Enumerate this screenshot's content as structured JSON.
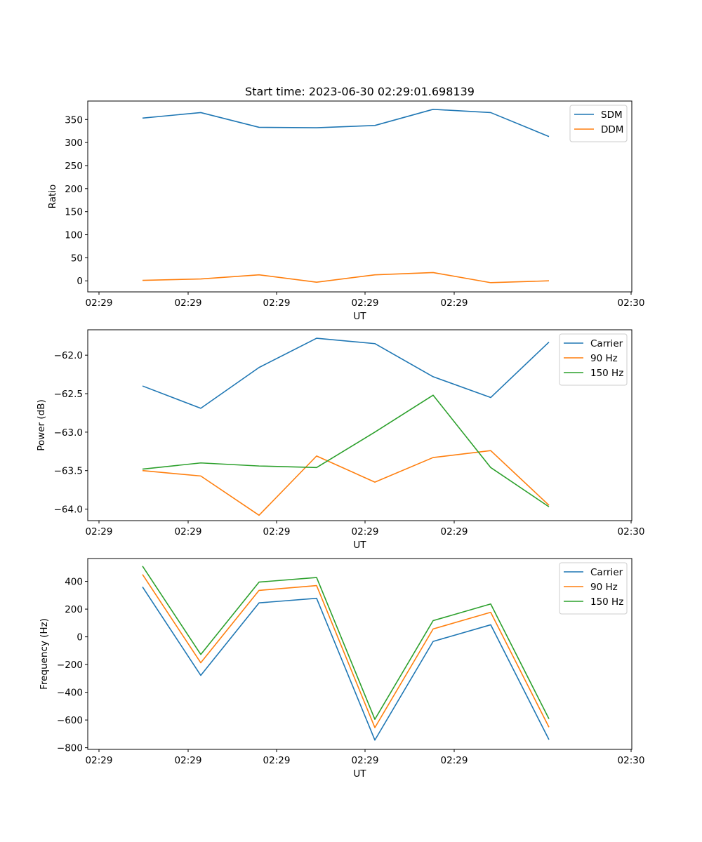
{
  "figure": {
    "title": "Start time: 2023-06-30 02:29:01.698139",
    "x_tick_labels": [
      "02:29",
      "02:29",
      "02:29",
      "02:29",
      "02:29",
      "02:30"
    ],
    "series_colors": {
      "blue": "#1f77b4",
      "orange": "#ff7f0e",
      "green": "#2ca02c"
    }
  },
  "chart_data": [
    {
      "type": "line",
      "xlabel": "UT",
      "ylabel": "Ratio",
      "ylim": [
        -24,
        390
      ],
      "y_ticks": [
        0,
        50,
        100,
        150,
        200,
        250,
        300,
        350
      ],
      "y_tick_labels": [
        "0",
        "50",
        "100",
        "150",
        "200",
        "250",
        "300",
        "350"
      ],
      "legend": "top-right",
      "series": [
        {
          "name": "SDM",
          "color": "#1f77b4",
          "values": [
            353,
            365,
            333,
            332,
            337,
            372,
            365,
            313
          ]
        },
        {
          "name": "DDM",
          "color": "#ff7f0e",
          "values": [
            1,
            4,
            13,
            -3,
            13,
            18,
            -4,
            0
          ]
        }
      ]
    },
    {
      "type": "line",
      "xlabel": "UT",
      "ylabel": "Power (dB)",
      "ylim": [
        -64.15,
        -61.67
      ],
      "y_ticks": [
        -64.0,
        -63.5,
        -63.0,
        -62.5,
        -62.0
      ],
      "y_tick_labels": [
        "−64.0",
        "−63.5",
        "−63.0",
        "−62.5",
        "−62.0"
      ],
      "legend": "top-right",
      "series": [
        {
          "name": "Carrier",
          "color": "#1f77b4",
          "values": [
            -62.4,
            -62.69,
            -62.16,
            -61.78,
            -61.85,
            -62.28,
            -62.55,
            -61.83
          ]
        },
        {
          "name": "90 Hz",
          "color": "#ff7f0e",
          "values": [
            -63.5,
            -63.57,
            -64.08,
            -63.31,
            -63.65,
            -63.33,
            -63.24,
            -63.95
          ]
        },
        {
          "name": "150 Hz",
          "color": "#2ca02c",
          "values": [
            -63.48,
            -63.4,
            -63.44,
            -63.46,
            -63.0,
            -62.52,
            -63.46,
            -63.97
          ]
        }
      ]
    },
    {
      "type": "line",
      "xlabel": "UT",
      "ylabel": "Frequency (Hz)",
      "ylim": [
        -812,
        565
      ],
      "y_ticks": [
        -800,
        -600,
        -400,
        -200,
        0,
        200,
        400
      ],
      "y_tick_labels": [
        "−800",
        "−600",
        "−400",
        "−200",
        "0",
        "200",
        "400"
      ],
      "legend": "top-right",
      "series": [
        {
          "name": "Carrier",
          "color": "#1f77b4",
          "values": [
            360,
            -278,
            245,
            278,
            -745,
            -33,
            87,
            -742
          ]
        },
        {
          "name": "90 Hz",
          "color": "#ff7f0e",
          "values": [
            450,
            -187,
            335,
            370,
            -655,
            57,
            177,
            -652
          ]
        },
        {
          "name": "150 Hz",
          "color": "#2ca02c",
          "values": [
            510,
            -127,
            395,
            428,
            -595,
            117,
            237,
            -592
          ]
        }
      ]
    }
  ]
}
